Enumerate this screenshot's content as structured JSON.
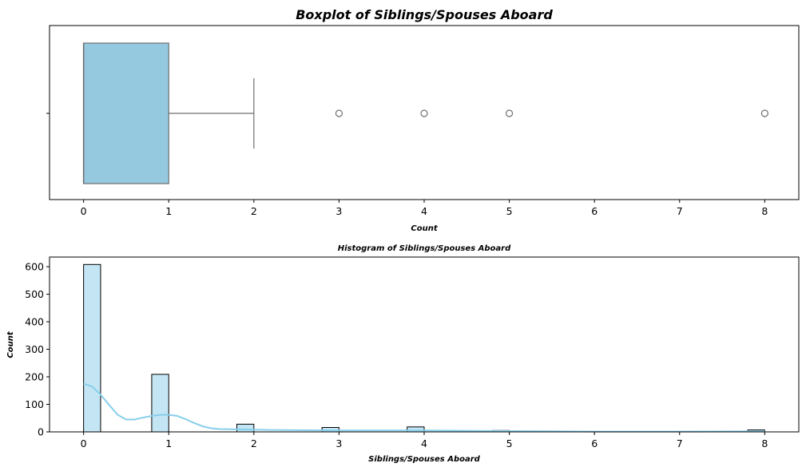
{
  "chart_data": [
    {
      "type": "boxplot",
      "title": "Boxplot of Siblings/Spouses Aboard",
      "xlabel": "Count",
      "ylabel": "",
      "xlim": [
        -0.4,
        8.4
      ],
      "xticks": [
        0,
        1,
        2,
        3,
        4,
        5,
        6,
        7,
        8
      ],
      "box": {
        "whisker_low": 0,
        "q1": 0,
        "median": 0,
        "q3": 1,
        "whisker_high": 2
      },
      "outliers": [
        3,
        4,
        5,
        8
      ],
      "colors": {
        "box": "#95c9e0",
        "edge": "#6e6e6e"
      },
      "grid": false
    },
    {
      "type": "histogram",
      "title": "Histogram of Siblings/Spouses Aboard",
      "xlabel": "Siblings/Spouses Aboard",
      "ylabel": "Count",
      "xlim": [
        -0.4,
        8.4
      ],
      "ylim": [
        0,
        635
      ],
      "xticks": [
        0,
        1,
        2,
        3,
        4,
        5,
        6,
        7,
        8
      ],
      "yticks": [
        0,
        100,
        200,
        300,
        400,
        500,
        600
      ],
      "bin_width": 0.2,
      "bins": [
        {
          "x": 0,
          "count": 608
        },
        {
          "x": 0.8,
          "count": 209
        },
        {
          "x": 1.8,
          "count": 28
        },
        {
          "x": 2.8,
          "count": 16
        },
        {
          "x": 3.8,
          "count": 18
        },
        {
          "x": 4.8,
          "count": 5
        },
        {
          "x": 7.8,
          "count": 7
        }
      ],
      "kde": {
        "x": [
          0,
          0.1,
          0.2,
          0.3,
          0.4,
          0.5,
          0.6,
          0.7,
          0.8,
          0.9,
          1.0,
          1.1,
          1.2,
          1.3,
          1.4,
          1.5,
          1.6,
          1.8,
          2.0,
          2.2,
          2.5,
          3.0,
          3.5,
          4.0,
          4.5,
          5.0,
          5.5,
          6.0,
          7.0,
          8.0
        ],
        "y": [
          175,
          165,
          135,
          98,
          62,
          45,
          45,
          52,
          58,
          62,
          62,
          58,
          46,
          32,
          20,
          13,
          10,
          9,
          8,
          7,
          6,
          5,
          5,
          5,
          4,
          3,
          2,
          1,
          1,
          2
        ]
      },
      "colors": {
        "bar": "#c4e6f4",
        "edge": "#000000",
        "kde": "#87ceeb"
      },
      "grid": false
    }
  ]
}
